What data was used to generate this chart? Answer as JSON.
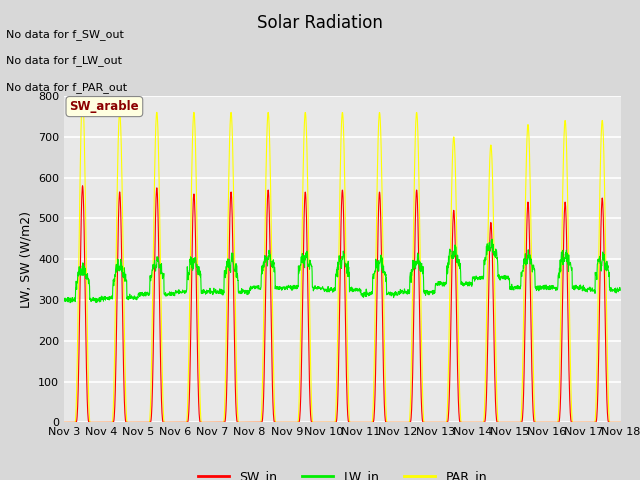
{
  "title": "Solar Radiation",
  "ylabel": "LW, SW (W/m2)",
  "ylim": [
    0,
    800
  ],
  "n_days": 15,
  "start_day": 3,
  "end_day": 18,
  "background_color": "#d8d8d8",
  "plot_bg_color": "#e8e8e8",
  "grid_color": "#ffffff",
  "sw_color": "#ff0000",
  "lw_color": "#00ee00",
  "par_color": "#ffff00",
  "no_data_texts": [
    "No data for f_SW_out",
    "No data for f_LW_out",
    "No data for f_PAR_out"
  ],
  "annotation_text": "SW_arable",
  "xtick_labels": [
    "Nov 3",
    "Nov 4",
    "Nov 5",
    "Nov 6",
    "Nov 7",
    "Nov 8",
    "Nov 9",
    "Nov 10",
    "Nov 11",
    "Nov 12",
    "Nov 13",
    "Nov 14",
    "Nov 15",
    "Nov 16",
    "Nov 17",
    "Nov 18"
  ],
  "legend_labels": [
    "SW_in",
    "LW_in",
    "PAR_in"
  ],
  "sw_peaks": [
    580,
    565,
    575,
    560,
    565,
    570,
    565,
    570,
    565,
    570,
    520,
    490,
    540,
    540,
    550
  ],
  "par_peaks": [
    800,
    760,
    760,
    760,
    760,
    760,
    760,
    760,
    760,
    760,
    700,
    680,
    730,
    740,
    740
  ],
  "lw_base_values": [
    300,
    305,
    315,
    320,
    320,
    330,
    330,
    325,
    315,
    320,
    340,
    355,
    330,
    330,
    325
  ]
}
